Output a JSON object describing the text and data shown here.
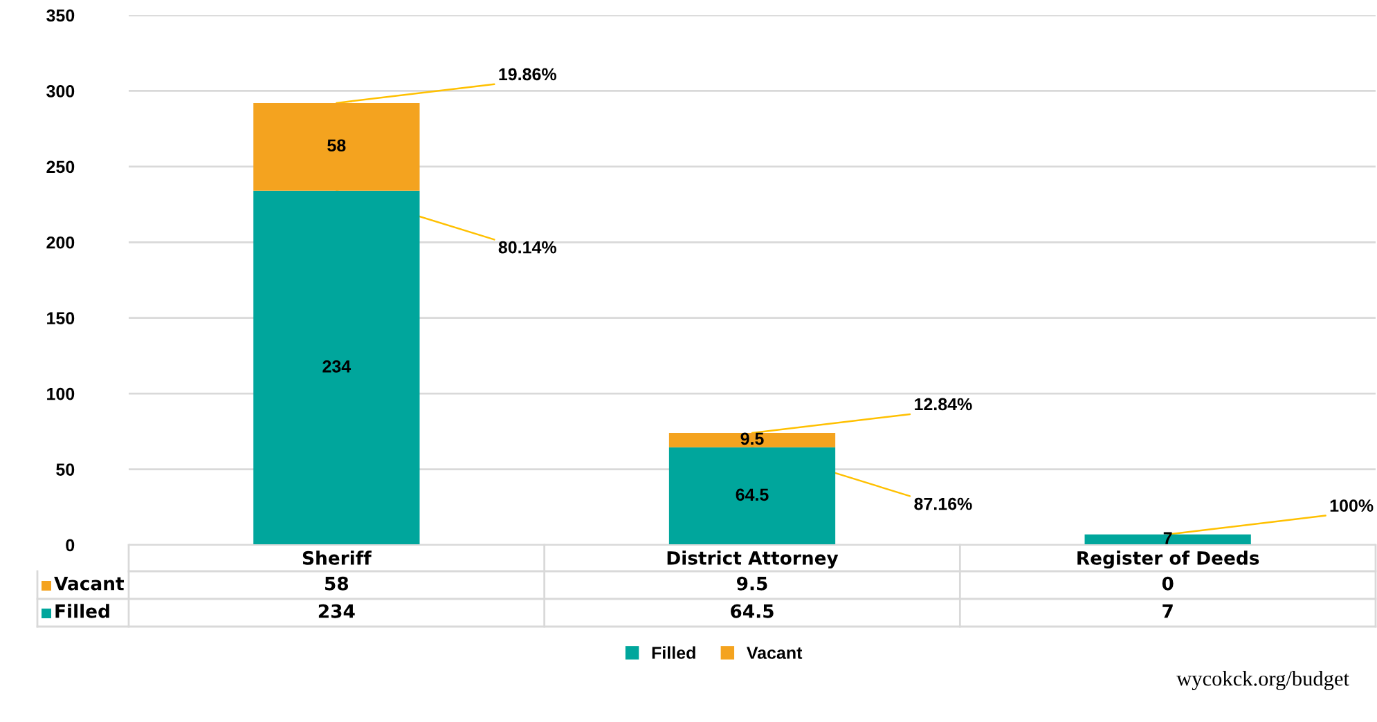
{
  "chart_data": {
    "type": "bar",
    "stacked": true,
    "categories": [
      "Sheriff",
      "District Attorney",
      "Register of Deeds"
    ],
    "series": [
      {
        "name": "Filled",
        "color": "#00a69c",
        "values": [
          234,
          64.5,
          7
        ],
        "value_labels": [
          "234",
          "64.5",
          "7"
        ]
      },
      {
        "name": "Vacant",
        "color": "#f4a31f",
        "values": [
          58,
          9.5,
          0
        ],
        "value_labels": [
          "58",
          "9.5",
          "0"
        ]
      }
    ],
    "ylim": [
      0,
      350
    ],
    "yticks": [
      0,
      50,
      100,
      150,
      200,
      250,
      300,
      350
    ],
    "grid": "y",
    "legend": "bottom",
    "data_labels": true,
    "annotations": [
      {
        "text": "80.14%",
        "x": "Sheriff",
        "y": 234
      },
      {
        "text": "19.86%",
        "x": "Sheriff",
        "y": 292
      },
      {
        "text": "87.16%",
        "x": "District Attorney",
        "y": 64.5
      },
      {
        "text": "12.84%",
        "x": "District Attorney",
        "y": 74
      },
      {
        "text": "100%",
        "x": "Register of Deeds",
        "y": 7
      },
      "wycokck.org/budget"
    ]
  }
}
